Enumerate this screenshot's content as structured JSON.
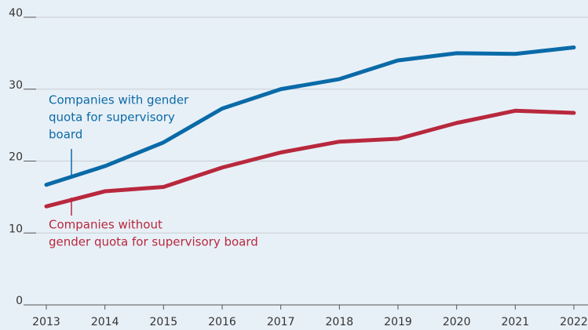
{
  "chart_data": {
    "type": "line",
    "x": [
      2013,
      2014,
      2015,
      2016,
      2017,
      2018,
      2019,
      2020,
      2021,
      2022
    ],
    "series": [
      {
        "name": "Companies with gender quota for supervisory board",
        "color": "#0a6aa8",
        "values": [
          16.7,
          19.3,
          22.6,
          27.3,
          30.0,
          31.4,
          34.0,
          35.0,
          34.9,
          35.8
        ]
      },
      {
        "name": "Companies without gender quota for supervisory board",
        "color": "#b8283d",
        "values": [
          13.7,
          15.8,
          16.4,
          19.1,
          21.2,
          22.7,
          23.1,
          25.3,
          27.0,
          26.7
        ]
      }
    ],
    "annotations": [
      {
        "lines": [
          "Companies with gender",
          "quota for supervisory",
          "board"
        ],
        "color": "#0a6aa8"
      },
      {
        "lines": [
          "Companies without",
          "gender quota for supervisory board"
        ],
        "color": "#b8283d"
      }
    ],
    "xlim": [
      2013,
      2022
    ],
    "xticks": [
      2013,
      2014,
      2015,
      2016,
      2017,
      2018,
      2019,
      2020,
      2021,
      2022
    ],
    "ylim": [
      0,
      40
    ],
    "yticks": [
      0,
      10,
      20,
      30,
      40
    ],
    "grid": true
  }
}
